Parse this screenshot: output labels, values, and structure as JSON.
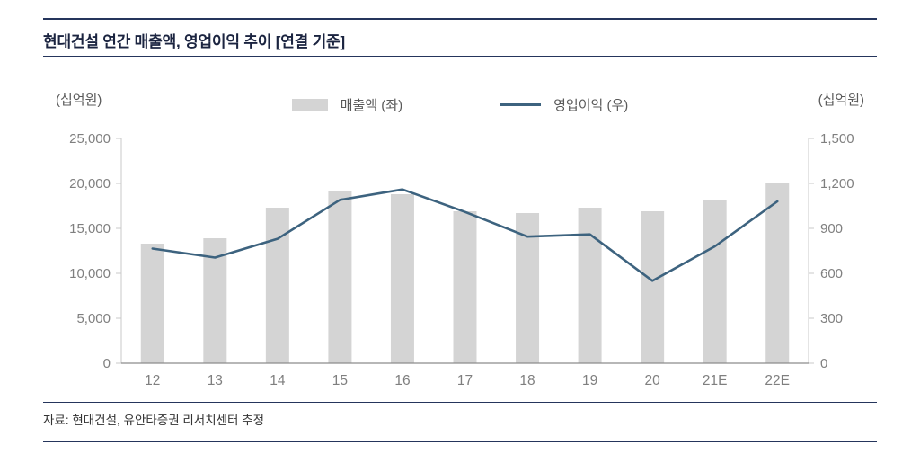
{
  "title": "현대건설 연간 매출액, 영업이익 추이 [연결 기준]",
  "footer": "자료: 현대건설, 유안타증권 리서치센터 추정",
  "left_axis_unit": "(십억원)",
  "right_axis_unit": "(십억원)",
  "legend": {
    "bars": "매출액 (좌)",
    "line": "영업이익 (우)"
  },
  "colors": {
    "bar": "#d4d4d4",
    "line": "#3d637f",
    "title": "#1b2440",
    "rule": "#25355c",
    "tick_text": "#7f7f7f",
    "axis_line": "#c9c9c9",
    "baseline": "#8c8c8c"
  },
  "chart_data": {
    "type": "bar",
    "subtype": "bar+line combo",
    "title": "현대건설 연간 매출액, 영업이익 추이 [연결 기준]",
    "categories": [
      "12",
      "13",
      "14",
      "15",
      "16",
      "17",
      "18",
      "19",
      "20",
      "21E",
      "22E"
    ],
    "series": [
      {
        "name": "매출액 (좌)",
        "type": "bar",
        "axis": "left",
        "values": [
          13300,
          13900,
          17300,
          19200,
          18800,
          16900,
          16700,
          17300,
          16900,
          18200,
          20000
        ]
      },
      {
        "name": "영업이익 (우)",
        "type": "line",
        "axis": "right",
        "values": [
          765,
          705,
          830,
          1090,
          1160,
          1010,
          845,
          860,
          550,
          780,
          1080
        ]
      }
    ],
    "left_axis": {
      "label": "(십억원)",
      "min": 0,
      "max": 25000,
      "step": 5000,
      "tick_labels": [
        "0",
        "5,000",
        "10,000",
        "15,000",
        "20,000",
        "25,000"
      ]
    },
    "right_axis": {
      "label": "(십억원)",
      "min": 0,
      "max": 1500,
      "step": 300,
      "tick_labels": [
        "0",
        "300",
        "600",
        "900",
        "1,200",
        "1,500"
      ]
    },
    "grid": false,
    "legend_position": "top-center"
  }
}
